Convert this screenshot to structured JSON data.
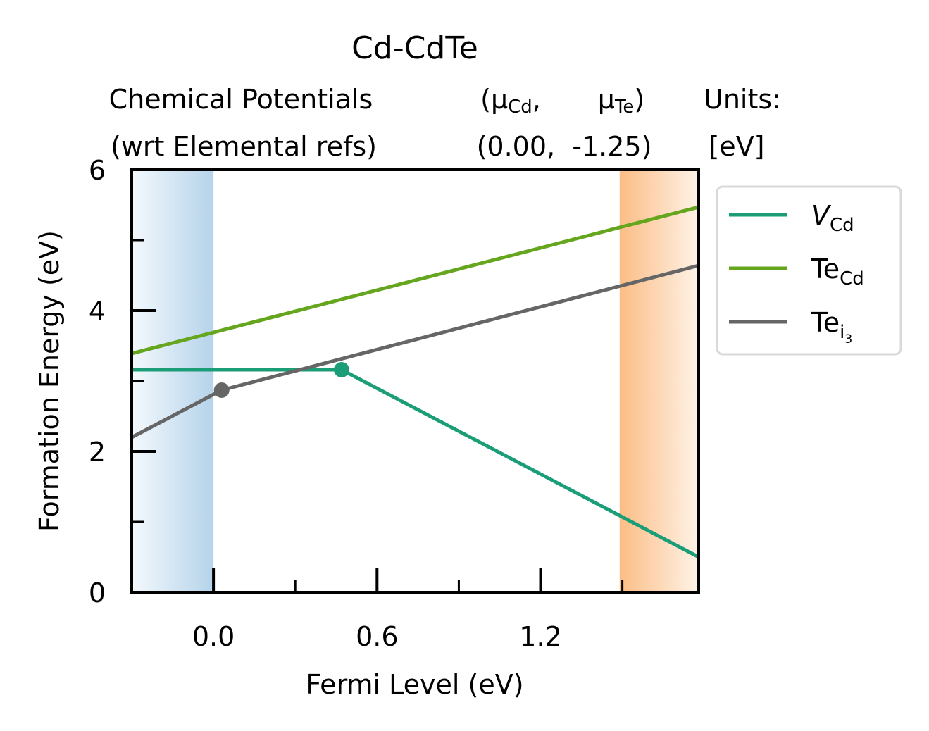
{
  "chart_data": {
    "type": "line",
    "title": "Cd-CdTe",
    "header": {
      "left_line1": "Chemical Potentials",
      "left_line2": "(wrt Elemental refs)",
      "mu_cd_symbol": "μ",
      "mu_cd_sub": "Cd",
      "mu_cd_suffix": ",",
      "mu_te_symbol": "μ",
      "mu_te_sub": "Te",
      "mu_te_suffix": ")",
      "mu_open": "(",
      "values_line": "(0.00,  -1.25)",
      "units_line1": "Units:",
      "units_line2": "[eV]"
    },
    "xlabel": "Fermi Level (eV)",
    "ylabel": "Formation Energy (eV)",
    "xlim": [
      -0.3,
      1.78
    ],
    "ylim": [
      0,
      6
    ],
    "x_ticks": [
      0.0,
      0.6,
      1.2
    ],
    "x_tick_labels": [
      "0.0",
      "0.6",
      "1.2"
    ],
    "x_minor_ticks": [
      0.3,
      0.9,
      1.5
    ],
    "y_ticks": [
      0,
      2,
      4,
      6
    ],
    "y_tick_labels": [
      "0",
      "2",
      "4",
      "6"
    ],
    "y_minor_ticks": [
      1,
      3,
      5
    ],
    "vbm_shading": {
      "from": -0.3,
      "to": 0.0,
      "color": "#b5d3ea"
    },
    "cbm_shading": {
      "from": 1.49,
      "to": 1.78,
      "color": "#fcbd85"
    },
    "legend_position": "outside right, upper",
    "series": [
      {
        "name": "V",
        "name_sub": "Cd",
        "name_italic": true,
        "color": "#1b9e77",
        "x": [
          -0.3,
          0.47,
          1.78
        ],
        "y": [
          3.16,
          3.16,
          0.5
        ],
        "transition_points": [
          {
            "x": 0.47,
            "y": 3.16
          }
        ]
      },
      {
        "name": "Te",
        "name_sub": "Cd",
        "name_italic": false,
        "color": "#66a61e",
        "x": [
          -0.3,
          1.78
        ],
        "y": [
          3.39,
          5.47
        ]
      },
      {
        "name": "Te",
        "name_sub": "i",
        "name_subsub": "3",
        "name_italic": false,
        "color": "#666666",
        "x": [
          -0.3,
          0.03,
          1.78
        ],
        "y": [
          2.2,
          2.87,
          4.64
        ],
        "transition_points": [
          {
            "x": 0.03,
            "y": 2.87
          }
        ]
      }
    ]
  }
}
